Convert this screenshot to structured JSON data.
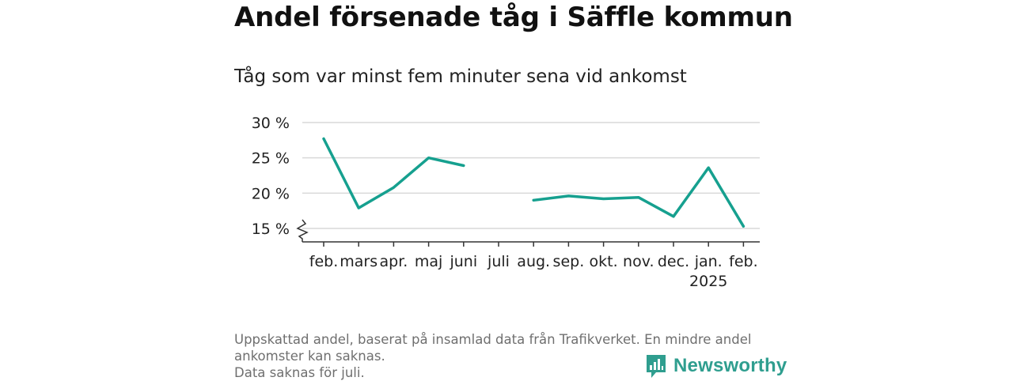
{
  "title": "Andel försenade tåg i Säffle kommun",
  "subtitle": "Tåg som var minst fem minuter sena vid ankomst",
  "footnote": {
    "line1": "Uppskattad andel, baserat på insamlad data från Trafikverket. En mindre andel",
    "line2": "ankomster kan saknas.",
    "line3": "Data saknas för juli."
  },
  "brand": {
    "name": "Newsworthy",
    "icon": "newsworthy-logo-icon",
    "color": "#2f9e8f"
  },
  "chart_data": {
    "type": "line",
    "title": "Andel försenade tåg i Säffle kommun",
    "subtitle": "Tåg som var minst fem minuter sena vid ankomst",
    "xlabel": "",
    "ylabel": "",
    "categories": [
      "feb.",
      "mars",
      "apr.",
      "maj",
      "juni",
      "juli",
      "aug.",
      "sep.",
      "okt.",
      "nov.",
      "dec.",
      "jan.",
      "feb."
    ],
    "year_labels": [
      "",
      "",
      "",
      "",
      "",
      "",
      "",
      "",
      "",
      "",
      "",
      "2025",
      ""
    ],
    "series": [
      {
        "values": [
          27.7,
          17.9,
          20.8,
          25.0,
          23.9,
          null,
          19.0,
          19.6,
          19.2,
          19.4,
          16.7,
          23.6,
          15.3
        ]
      }
    ],
    "y_ticks": [
      15,
      20,
      25,
      30
    ],
    "y_tick_labels": [
      "15 %",
      "20 %",
      "25 %",
      "30 %"
    ],
    "ylim": [
      15,
      30
    ],
    "y_axis_break": true,
    "grid": true,
    "line_color": "#16a08f",
    "grid_color": "#d9d9d9",
    "axis_color": "#333333"
  }
}
